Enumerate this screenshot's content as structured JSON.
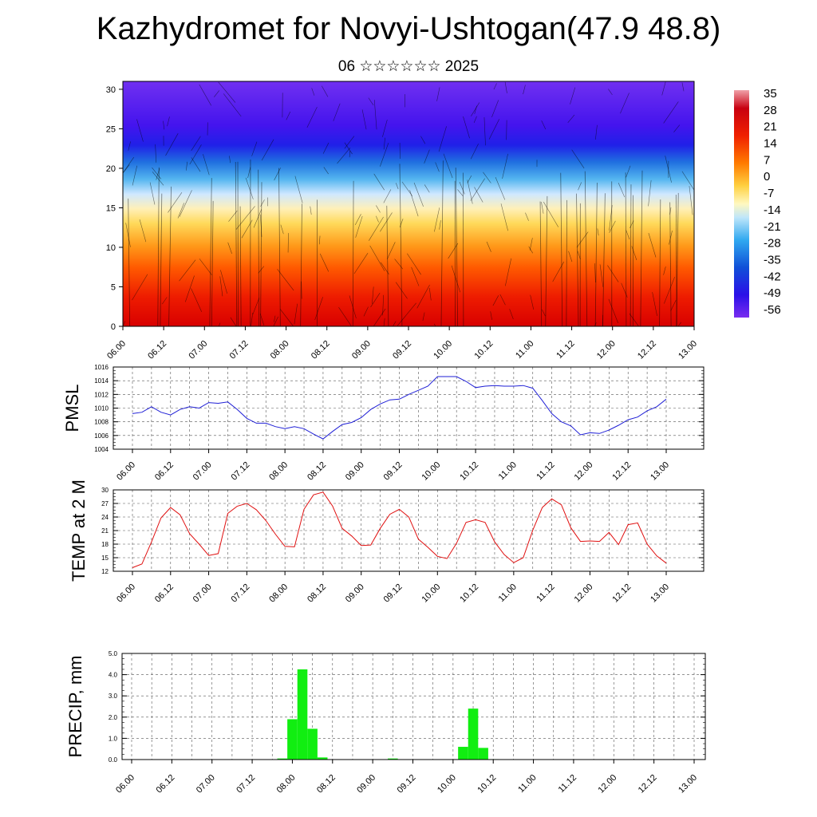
{
  "header": {
    "title": "Kazhydromet for Novyi-Ushtogan(47.9 48.8)",
    "subtitle": "06 ☆☆☆☆☆☆ 2025"
  },
  "colors": {
    "pmsl_line": "#1f1fd6",
    "temp_line": "#e01010",
    "precip_bar": "#11ee11",
    "grid": "#555555"
  },
  "chart_data": [
    {
      "type": "heatmap",
      "name_hint": "cross-section",
      "x_ticks": [
        "06.00",
        "06.12",
        "07.00",
        "07.12",
        "08.00",
        "08.12",
        "09.00",
        "09.12",
        "10.00",
        "10.12",
        "11.00",
        "11.12",
        "12.00",
        "12.12",
        "13.00"
      ],
      "y_ticks": [
        "0",
        "5",
        "10",
        "15",
        "20",
        "25",
        "30"
      ],
      "ylim": [
        0,
        31
      ],
      "colorbar_labels": [
        "35",
        "28",
        "21",
        "14",
        "7",
        "0",
        "-7",
        "-14",
        "-21",
        "-28",
        "-35",
        "-42",
        "-49",
        "-56"
      ],
      "zlim": [
        -60,
        38
      ]
    },
    {
      "type": "line",
      "ylabel": "PMSL",
      "ylim": [
        1004,
        1016
      ],
      "y_ticks": [
        "1004",
        "1006",
        "1008",
        "1010",
        "1012",
        "1014",
        "1016"
      ],
      "x_ticks": [
        "06.00",
        "06.12",
        "07.00",
        "07.12",
        "08.00",
        "08.12",
        "09.00",
        "09.12",
        "10.00",
        "10.12",
        "11.00",
        "11.12",
        "12.00",
        "12.12",
        "13.00"
      ],
      "values": [
        1009.2,
        1009.4,
        1010.2,
        1009.4,
        1009.0,
        1009.8,
        1010.2,
        1010.0,
        1010.8,
        1010.7,
        1010.9,
        1009.8,
        1008.5,
        1007.8,
        1007.8,
        1007.3,
        1007.0,
        1007.3,
        1007.0,
        1006.2,
        1005.5,
        1006.6,
        1007.6,
        1007.9,
        1008.6,
        1009.8,
        1010.6,
        1011.2,
        1011.3,
        1012.0,
        1012.6,
        1013.2,
        1014.6,
        1014.6,
        1014.6,
        1013.9,
        1013.0,
        1013.2,
        1013.3,
        1013.2,
        1013.2,
        1013.3,
        1012.9,
        1011.1,
        1009.2,
        1008.0,
        1007.4,
        1006.1,
        1006.4,
        1006.3,
        1006.8,
        1007.5,
        1008.3,
        1008.7,
        1009.6,
        1010.2,
        1011.3
      ]
    },
    {
      "type": "line",
      "ylabel": "TEMP at 2 M",
      "ylim": [
        12,
        30
      ],
      "y_ticks": [
        "12",
        "15",
        "18",
        "21",
        "24",
        "27",
        "30"
      ],
      "x_ticks": [
        "06.00",
        "06.12",
        "07.00",
        "07.12",
        "08.00",
        "08.12",
        "09.00",
        "09.12",
        "10.00",
        "10.12",
        "11.00",
        "11.12",
        "12.00",
        "12.12",
        "13.00"
      ],
      "values": [
        12.8,
        13.6,
        18.5,
        23.8,
        26.1,
        24.5,
        20.3,
        18.0,
        15.5,
        15.9,
        24.8,
        26.4,
        27.0,
        25.6,
        23.2,
        20.2,
        17.5,
        17.4,
        25.7,
        28.9,
        29.5,
        26.4,
        21.5,
        19.8,
        17.7,
        17.8,
        21.5,
        24.6,
        25.7,
        24.0,
        19.1,
        17.3,
        15.3,
        14.8,
        18.2,
        22.8,
        23.4,
        22.8,
        18.5,
        15.7,
        13.9,
        15.0,
        21.1,
        26.1,
        28.0,
        26.7,
        21.6,
        18.6,
        18.7,
        18.6,
        20.6,
        17.9,
        22.3,
        22.7,
        18.0,
        15.4,
        13.8
      ]
    },
    {
      "type": "bar",
      "ylabel": "PRECIP, mm",
      "ylim": [
        0,
        5
      ],
      "y_ticks": [
        "0.0",
        "1.0",
        "2.0",
        "3.0",
        "4.0",
        "5.0"
      ],
      "x_ticks": [
        "06.00",
        "06.12",
        "07.00",
        "07.12",
        "08.00",
        "08.12",
        "09.00",
        "09.12",
        "10.00",
        "10.12",
        "11.00",
        "11.12",
        "12.00",
        "12.12",
        "13.00"
      ],
      "bars": [
        {
          "t": 45,
          "value": 0.05
        },
        {
          "t": 48,
          "value": 1.9
        },
        {
          "t": 51,
          "value": 4.25
        },
        {
          "t": 54,
          "value": 1.45
        },
        {
          "t": 57,
          "value": 0.1
        },
        {
          "t": 78,
          "value": 0.05
        },
        {
          "t": 99,
          "value": 0.6
        },
        {
          "t": 102,
          "value": 2.4
        },
        {
          "t": 105,
          "value": 0.55
        },
        {
          "t": 108,
          "value": 0.02
        }
      ]
    }
  ]
}
